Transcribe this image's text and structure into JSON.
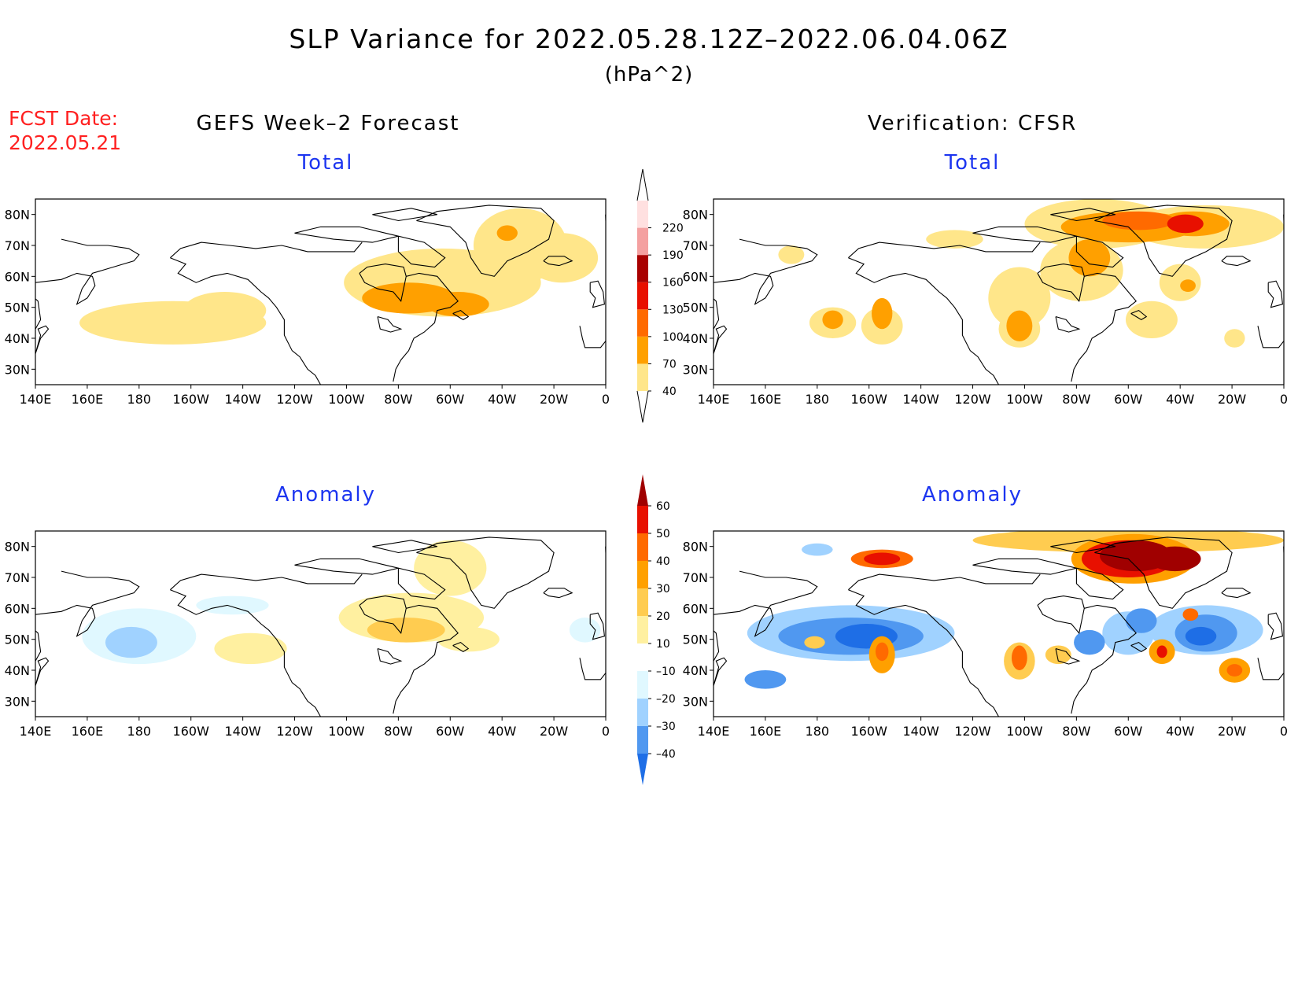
{
  "title": "SLP Variance for 2022.05.28.12Z–2022.06.04.06Z",
  "units": "(hPa^2)",
  "fcst_date_label": "FCST Date:",
  "fcst_date_value": "2022.05.21",
  "left_column_title": "GEFS Week–2 Forecast",
  "right_column_title": "Verification: CFSR",
  "panels": [
    {
      "id": "forecast-total",
      "subtitle": "Total",
      "colorbar": "total"
    },
    {
      "id": "verification-total",
      "subtitle": "Total",
      "colorbar": "total"
    },
    {
      "id": "forecast-anomaly",
      "subtitle": "Anomaly",
      "colorbar": "anomaly"
    },
    {
      "id": "verification-anomaly",
      "subtitle": "Anomaly",
      "colorbar": "anomaly"
    }
  ],
  "map_axes": {
    "lon_labels": [
      "140E",
      "160E",
      "180",
      "160W",
      "140W",
      "120W",
      "100W",
      "80W",
      "60W",
      "40W",
      "20W",
      "0"
    ],
    "lat_labels": [
      "80N",
      "70N",
      "60N",
      "50N",
      "40N",
      "30N"
    ],
    "lon_range": [
      140,
      360
    ],
    "lat_range": [
      25,
      85
    ]
  },
  "colorbars": {
    "total": {
      "levels": [
        "40",
        "70",
        "100",
        "130",
        "160",
        "190",
        "220"
      ],
      "colors": [
        "#ffffff",
        "#ffe68a",
        "#ffa000",
        "#ff6a00",
        "#e81000",
        "#a80000",
        "#f4a0a0",
        "#ffe0e0"
      ]
    },
    "anomaly": {
      "levels": [
        "60",
        "50",
        "40",
        "30",
        "20",
        "10",
        "–10",
        "–20",
        "–30",
        "–40"
      ],
      "colors": [
        "#a00000",
        "#e81000",
        "#ff6a00",
        "#ffa000",
        "#ffcc50",
        "#fff0a0",
        "#ffffff",
        "#e0f8ff",
        "#a0d2ff",
        "#5098f0",
        "#1e6ee6"
      ]
    }
  },
  "fields": {
    "forecast-total": [
      {
        "level": "40-70",
        "lon": 190,
        "lat": 46,
        "note": "N Pacific band"
      },
      {
        "level": "40-70",
        "lon": 300,
        "lat": 60,
        "note": "Canada/N Atlantic"
      },
      {
        "level": "70-100",
        "lon": 282,
        "lat": 53,
        "note": "Hudson Bay to Labrador"
      },
      {
        "level": "70-100",
        "lon": 322,
        "lat": 74,
        "note": "Greenland"
      }
    ],
    "verification-total": [
      {
        "level": "70-130",
        "lon": 300,
        "lat": 75,
        "note": "Arctic/Greenland max"
      },
      {
        "level": "40-100",
        "lon": 255,
        "lat": 45,
        "note": "central N America"
      },
      {
        "level": "40-100",
        "lon": 205,
        "lat": 45,
        "note": "N Pacific centers"
      }
    ],
    "forecast-anomaly": [
      {
        "level": "10-20",
        "lon": 285,
        "lat": 52,
        "note": "Hudson Bay positive"
      },
      {
        "level": "-10 to -20",
        "lon": 172,
        "lat": 48,
        "note": "NW Pacific negative"
      }
    ],
    "verification-anomaly": [
      {
        "level": ">60",
        "lon": 298,
        "lat": 75,
        "note": "Arctic positive max"
      },
      {
        "level": "<-30",
        "lon": 195,
        "lat": 50,
        "note": "N Pacific negative"
      },
      {
        "level": "<-30",
        "lon": 328,
        "lat": 52,
        "note": "N Atlantic negative"
      }
    ]
  }
}
